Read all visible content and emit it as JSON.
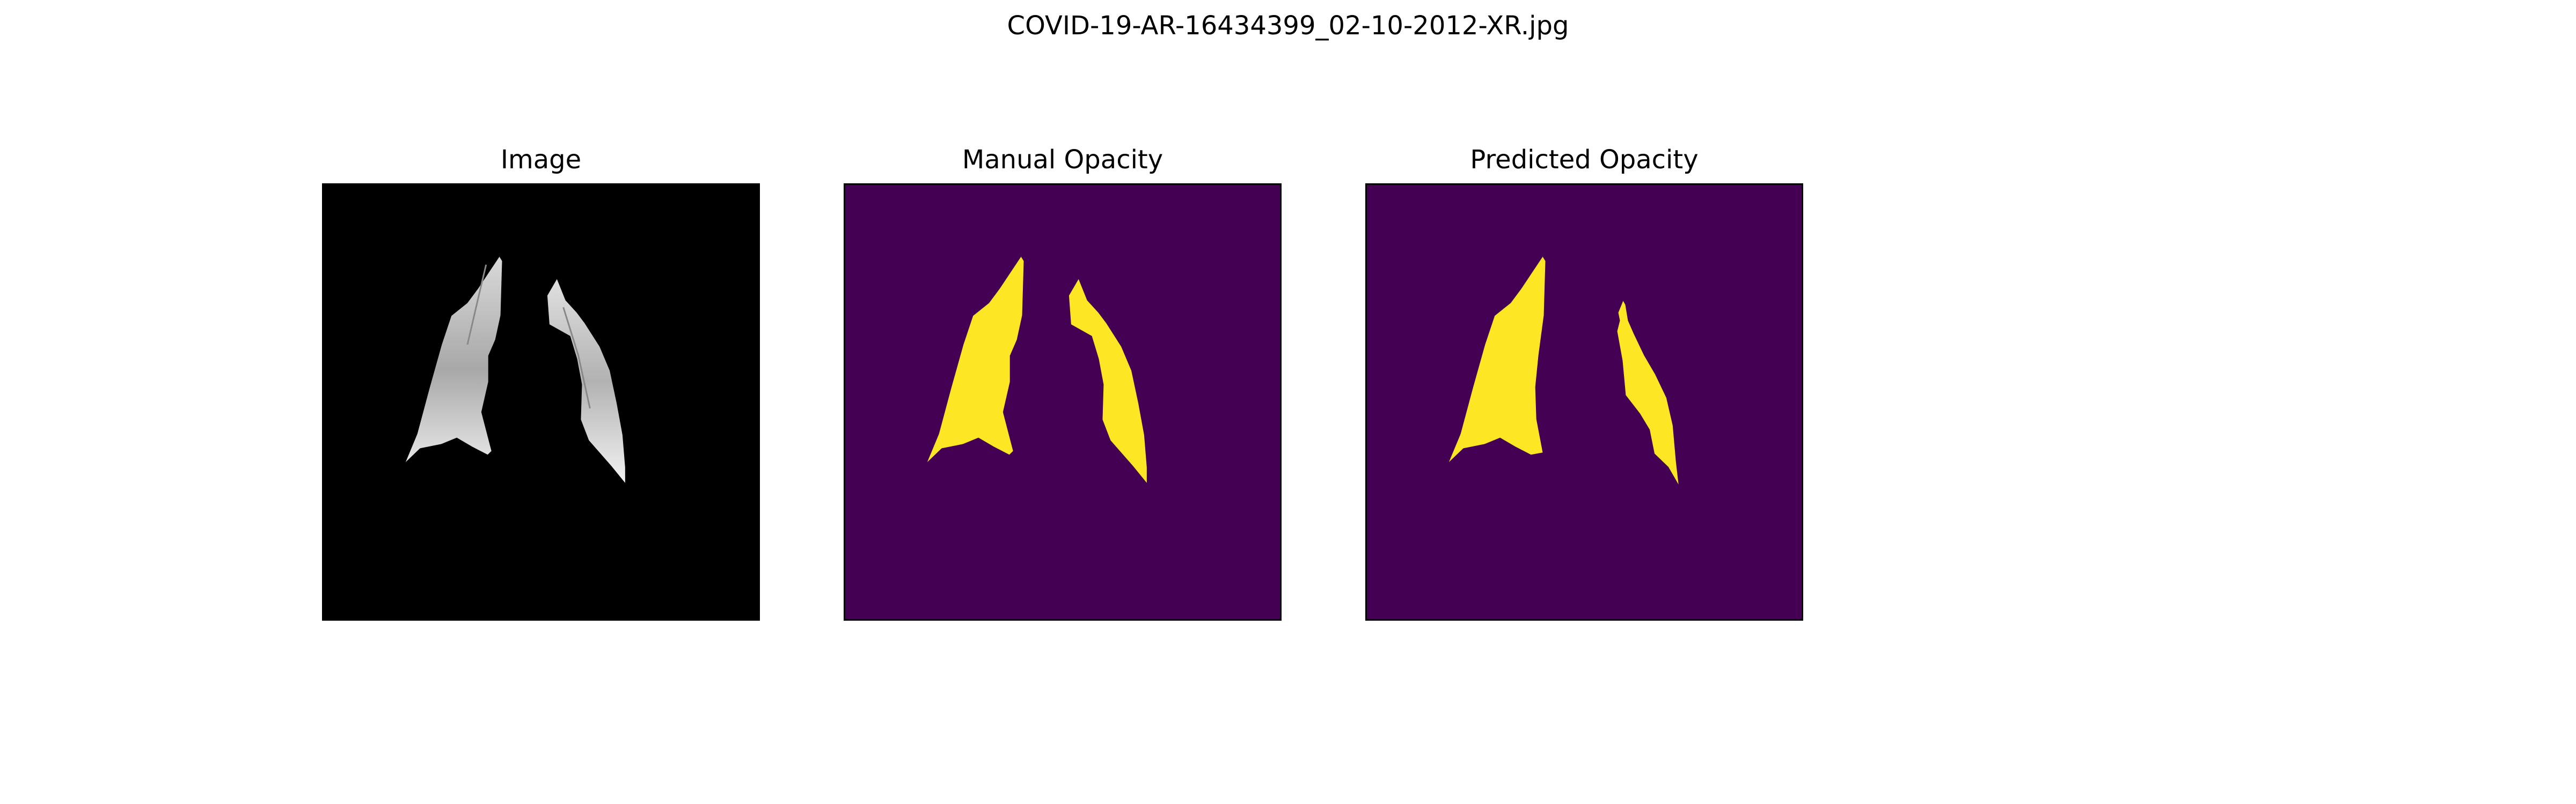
{
  "figure": {
    "title": "COVID-19-AR-16434399_02-10-2012-XR.jpg"
  },
  "panels": [
    {
      "title": "Image",
      "background": "#000000",
      "lung_fill": "#c4c4c4"
    },
    {
      "title": "Manual Opacity",
      "background": "#440154",
      "lung_fill": "#fde725"
    },
    {
      "title": "Predicted Opacity",
      "background": "#440154",
      "lung_fill": "#fde725"
    }
  ]
}
